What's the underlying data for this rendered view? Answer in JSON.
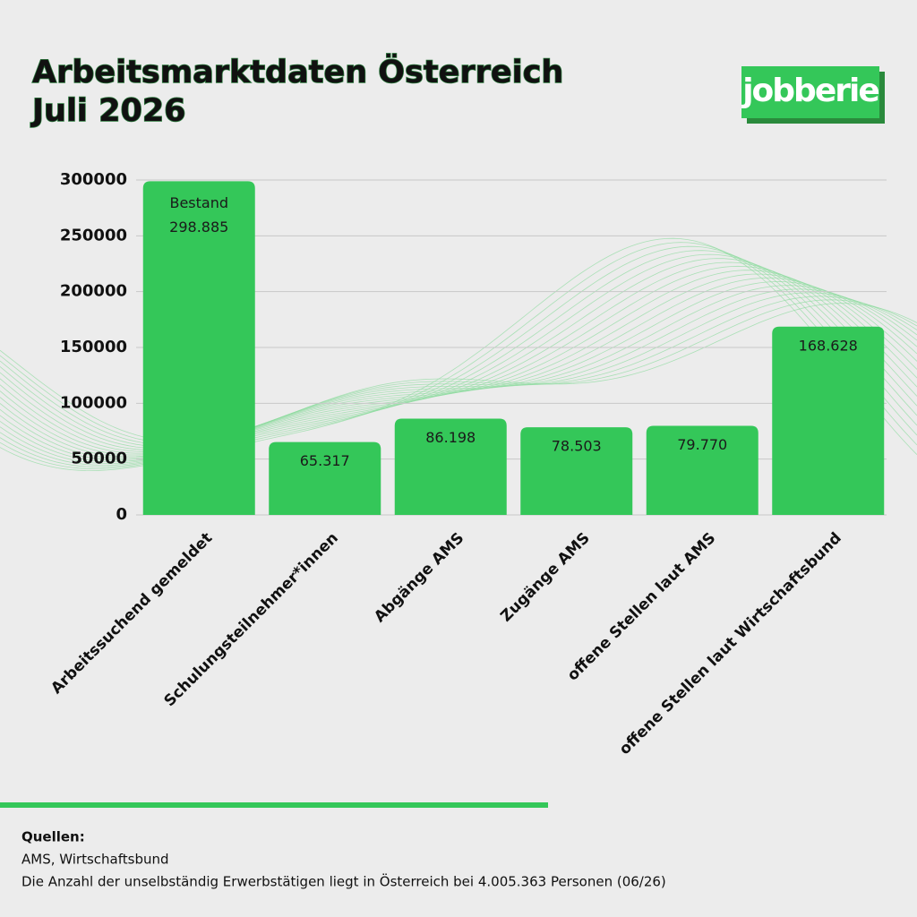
{
  "chart_data": {
    "type": "bar",
    "title": "Arbeitsmarktdaten Österreich",
    "subtitle": "Juli 2026",
    "logo": "jobberie",
    "categories": [
      "Arbeitssuchend gemeldet",
      "Schulungsteilnehmer*innen",
      "Abgänge AMS",
      "Zugänge AMS",
      "offene Stellen laut AMS",
      "offene Stellen laut Wirtschaftsbund"
    ],
    "values": [
      298885,
      65317,
      86198,
      78503,
      79770,
      168628
    ],
    "value_labels": [
      "298.885",
      "65.317",
      "86.198",
      "78.503",
      "79.770",
      "168.628"
    ],
    "annotation": "Bestand",
    "color": "#34c759",
    "ylim": [
      0,
      300000
    ],
    "yticks": [
      0,
      50000,
      100000,
      150000,
      200000,
      250000,
      300000
    ],
    "grid": true,
    "sources_title": "Quellen:",
    "sources": "AMS, Wirtschaftsbund",
    "note": "Die Anzahl der unselbständig Erwerbstätigen liegt in Österreich bei 4.005.363 Personen (06/26)"
  }
}
